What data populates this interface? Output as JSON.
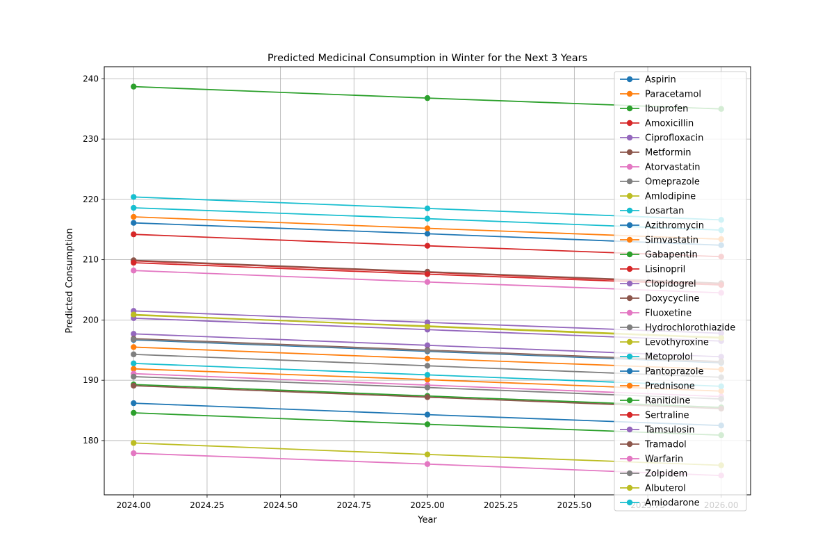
{
  "chart_data": {
    "type": "line",
    "title": "Predicted Medicinal Consumption in Winter for the Next 3 Years",
    "xlabel": "Year",
    "ylabel": "Predicted Consumption",
    "x": [
      2024,
      2025,
      2026
    ],
    "xlim": [
      2023.9,
      2026.1
    ],
    "ylim": [
      171,
      242
    ],
    "xticks": [
      "2024.00",
      "2024.25",
      "2024.50",
      "2024.75",
      "2025.00",
      "2025.25",
      "2025.50",
      "2025.75",
      "2026.00"
    ],
    "yticks": [
      "180",
      "190",
      "200",
      "210",
      "220",
      "230",
      "240"
    ],
    "grid": true,
    "legend_position": "upper right",
    "series": [
      {
        "name": "Aspirin",
        "color": "#1f77b4",
        "values": [
          196.7,
          194.8,
          192.9
        ]
      },
      {
        "name": "Paracetamol",
        "color": "#ff7f0e",
        "values": [
          191.9,
          190.1,
          188.2
        ]
      },
      {
        "name": "Ibuprofen",
        "color": "#2ca02c",
        "values": [
          238.7,
          236.8,
          235.0
        ]
      },
      {
        "name": "Amoxicillin",
        "color": "#d62728",
        "values": [
          209.8,
          207.9,
          206.0
        ]
      },
      {
        "name": "Ciprofloxacin",
        "color": "#9467bd",
        "values": [
          197.7,
          195.8,
          193.9
        ]
      },
      {
        "name": "Metformin",
        "color": "#8c564b",
        "values": [
          209.9,
          208.0,
          206.1
        ]
      },
      {
        "name": "Atorvastatin",
        "color": "#e377c2",
        "values": [
          191.1,
          189.2,
          187.3
        ]
      },
      {
        "name": "Omeprazole",
        "color": "#7f7f7f",
        "values": [
          194.3,
          192.4,
          190.5
        ]
      },
      {
        "name": "Amlodipine",
        "color": "#bcbd22",
        "values": [
          200.8,
          199.0,
          197.1
        ]
      },
      {
        "name": "Losartan",
        "color": "#17becf",
        "values": [
          220.4,
          218.5,
          216.6
        ]
      },
      {
        "name": "Azithromycin",
        "color": "#1f77b4",
        "values": [
          216.1,
          214.3,
          212.4
        ]
      },
      {
        "name": "Simvastatin",
        "color": "#ff7f0e",
        "values": [
          217.1,
          215.2,
          213.4
        ]
      },
      {
        "name": "Gabapentin",
        "color": "#2ca02c",
        "values": [
          189.3,
          187.4,
          185.5
        ]
      },
      {
        "name": "Lisinopril",
        "color": "#d62728",
        "values": [
          214.2,
          212.3,
          210.5
        ]
      },
      {
        "name": "Clopidogrel",
        "color": "#9467bd",
        "values": [
          200.3,
          198.4,
          196.5
        ]
      },
      {
        "name": "Doxycycline",
        "color": "#8c564b",
        "values": [
          196.9,
          195.0,
          193.1
        ]
      },
      {
        "name": "Fluoxetine",
        "color": "#e377c2",
        "values": [
          208.2,
          206.3,
          204.5
        ]
      },
      {
        "name": "Hydrochlorothiazide",
        "color": "#7f7f7f",
        "values": [
          190.6,
          188.8,
          186.9
        ]
      },
      {
        "name": "Levothyroxine",
        "color": "#bcbd22",
        "values": [
          179.6,
          177.7,
          175.9
        ]
      },
      {
        "name": "Metoprolol",
        "color": "#17becf",
        "values": [
          192.8,
          190.9,
          189.0
        ]
      },
      {
        "name": "Pantoprazole",
        "color": "#1f77b4",
        "values": [
          186.2,
          184.3,
          182.5
        ]
      },
      {
        "name": "Prednisone",
        "color": "#ff7f0e",
        "values": [
          195.5,
          193.6,
          191.8
        ]
      },
      {
        "name": "Ranitidine",
        "color": "#2ca02c",
        "values": [
          184.6,
          182.7,
          180.9
        ]
      },
      {
        "name": "Sertraline",
        "color": "#d62728",
        "values": [
          209.5,
          207.6,
          205.8
        ]
      },
      {
        "name": "Tamsulosin",
        "color": "#9467bd",
        "values": [
          201.5,
          199.6,
          197.8
        ]
      },
      {
        "name": "Tramadol",
        "color": "#8c564b",
        "values": [
          189.1,
          187.2,
          185.3
        ]
      },
      {
        "name": "Warfarin",
        "color": "#e377c2",
        "values": [
          177.9,
          176.1,
          174.2
        ]
      },
      {
        "name": "Zolpidem",
        "color": "#7f7f7f",
        "values": [
          196.8,
          194.9,
          193.0
        ]
      },
      {
        "name": "Albuterol",
        "color": "#bcbd22",
        "values": [
          200.9,
          198.9,
          197.0
        ]
      },
      {
        "name": "Amiodarone",
        "color": "#17becf",
        "values": [
          218.6,
          216.8,
          214.9
        ]
      }
    ]
  }
}
